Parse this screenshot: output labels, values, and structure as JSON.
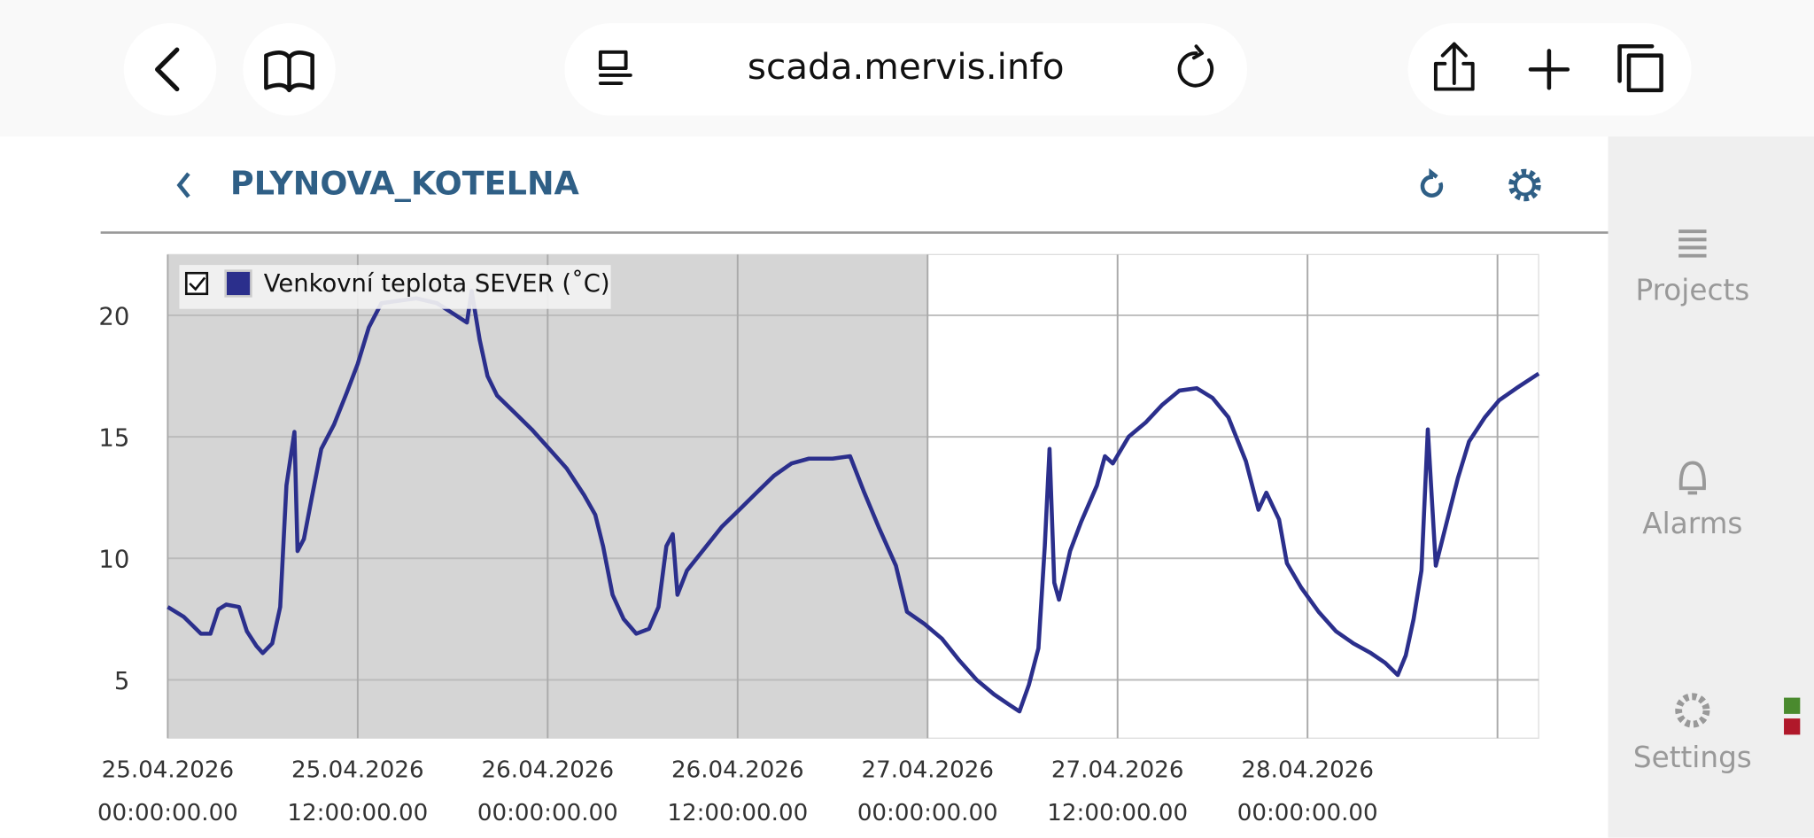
{
  "browser": {
    "url": "scada.mervis.info"
  },
  "header": {
    "title": "PLYNOVA_KOTELNA"
  },
  "sidebar": {
    "items": [
      "Projects",
      "Alarms",
      "Settings"
    ]
  },
  "chart_data": {
    "type": "line",
    "x": [
      0,
      1.0,
      2.1,
      2.7,
      3.2,
      3.7,
      4.5,
      5.0,
      5.6,
      6.0,
      6.6,
      7.1,
      7.5,
      8.0,
      8.2,
      8.6,
      9.1,
      9.7,
      10.5,
      11.3,
      12.0,
      12.7,
      13.5,
      14.6,
      15.7,
      17.0,
      18.2,
      18.9,
      19.2,
      19.7,
      20.2,
      20.8,
      21.9,
      23.0,
      24.1,
      25.2,
      26.3,
      27.0,
      27.5,
      28.1,
      28.8,
      29.6,
      30.4,
      31.0,
      31.5,
      31.9,
      32.2,
      32.8,
      33.9,
      35.0,
      36.1,
      37.2,
      38.3,
      39.4,
      40.5,
      42.0,
      43.1,
      44.0,
      44.9,
      46.0,
      46.7,
      47.8,
      48.9,
      50.0,
      51.1,
      52.2,
      53.1,
      53.8,
      54.4,
      55.0,
      55.4,
      55.7,
      56.0,
      56.3,
      57.0,
      57.7,
      58.7,
      59.2,
      59.7,
      60.7,
      61.8,
      62.8,
      63.9,
      65.0,
      66.0,
      67.0,
      68.1,
      68.9,
      69.4,
      70.2,
      70.7,
      71.6,
      72.7,
      73.8,
      74.9,
      76.0,
      76.9,
      77.7,
      78.2,
      78.7,
      79.2,
      79.6,
      79.8,
      80.1,
      80.8,
      81.5,
      82.2,
      83.2,
      84.1,
      85.2,
      86.6
    ],
    "series": [
      {
        "name": "Venkovní teplota SEVER (˚C)",
        "color": "#2b2f8c",
        "values": [
          8.0,
          7.6,
          6.9,
          6.9,
          7.9,
          8.1,
          8.0,
          7.0,
          6.4,
          6.1,
          6.5,
          8.0,
          13.0,
          15.2,
          10.3,
          10.8,
          12.5,
          14.5,
          15.5,
          16.8,
          18.0,
          19.5,
          20.5,
          20.6,
          20.7,
          20.5,
          20.0,
          19.7,
          21.0,
          19.0,
          17.5,
          16.7,
          16.0,
          15.3,
          14.5,
          13.7,
          12.6,
          11.8,
          10.5,
          8.5,
          7.5,
          6.9,
          7.1,
          8.0,
          10.5,
          11.0,
          8.5,
          9.5,
          10.4,
          11.3,
          12.0,
          12.7,
          13.4,
          13.9,
          14.1,
          14.1,
          14.2,
          12.7,
          11.3,
          9.7,
          7.8,
          7.3,
          6.7,
          5.8,
          5.0,
          4.4,
          4.0,
          3.7,
          4.8,
          6.3,
          10.5,
          14.5,
          9.0,
          8.3,
          10.3,
          11.5,
          13.0,
          14.2,
          13.9,
          15.0,
          15.6,
          16.3,
          16.9,
          17.0,
          16.6,
          15.8,
          14.0,
          12.0,
          12.7,
          11.6,
          9.8,
          8.8,
          7.8,
          7.0,
          6.5,
          6.1,
          5.7,
          5.2,
          6.0,
          7.5,
          9.5,
          15.3,
          13.0,
          9.7,
          11.5,
          13.3,
          14.8,
          15.8,
          16.5,
          17.0,
          17.6
        ]
      }
    ],
    "xlim": [
      0,
      86.6
    ],
    "ylim": [
      2.6,
      22.5
    ],
    "xticks": [
      {
        "value": 0,
        "label": "25.04.2026 00:00:00.00"
      },
      {
        "value": 12,
        "label": "25.04.2026 12:00:00.00"
      },
      {
        "value": 24,
        "label": "26.04.2026 00:00:00.00"
      },
      {
        "value": 36,
        "label": "26.04.2026 12:00:00.00"
      },
      {
        "value": 48,
        "label": "27.04.2026 00:00:00.00"
      },
      {
        "value": 60,
        "label": "27.04.2026 12:00:00.00"
      },
      {
        "value": 72,
        "label": "28.04.2026 00:00:00.00"
      },
      {
        "value": 84,
        "label": null
      }
    ],
    "yticks": [
      5,
      10,
      15,
      20
    ],
    "highlight_xlim": [
      0,
      48
    ],
    "grid": true
  }
}
